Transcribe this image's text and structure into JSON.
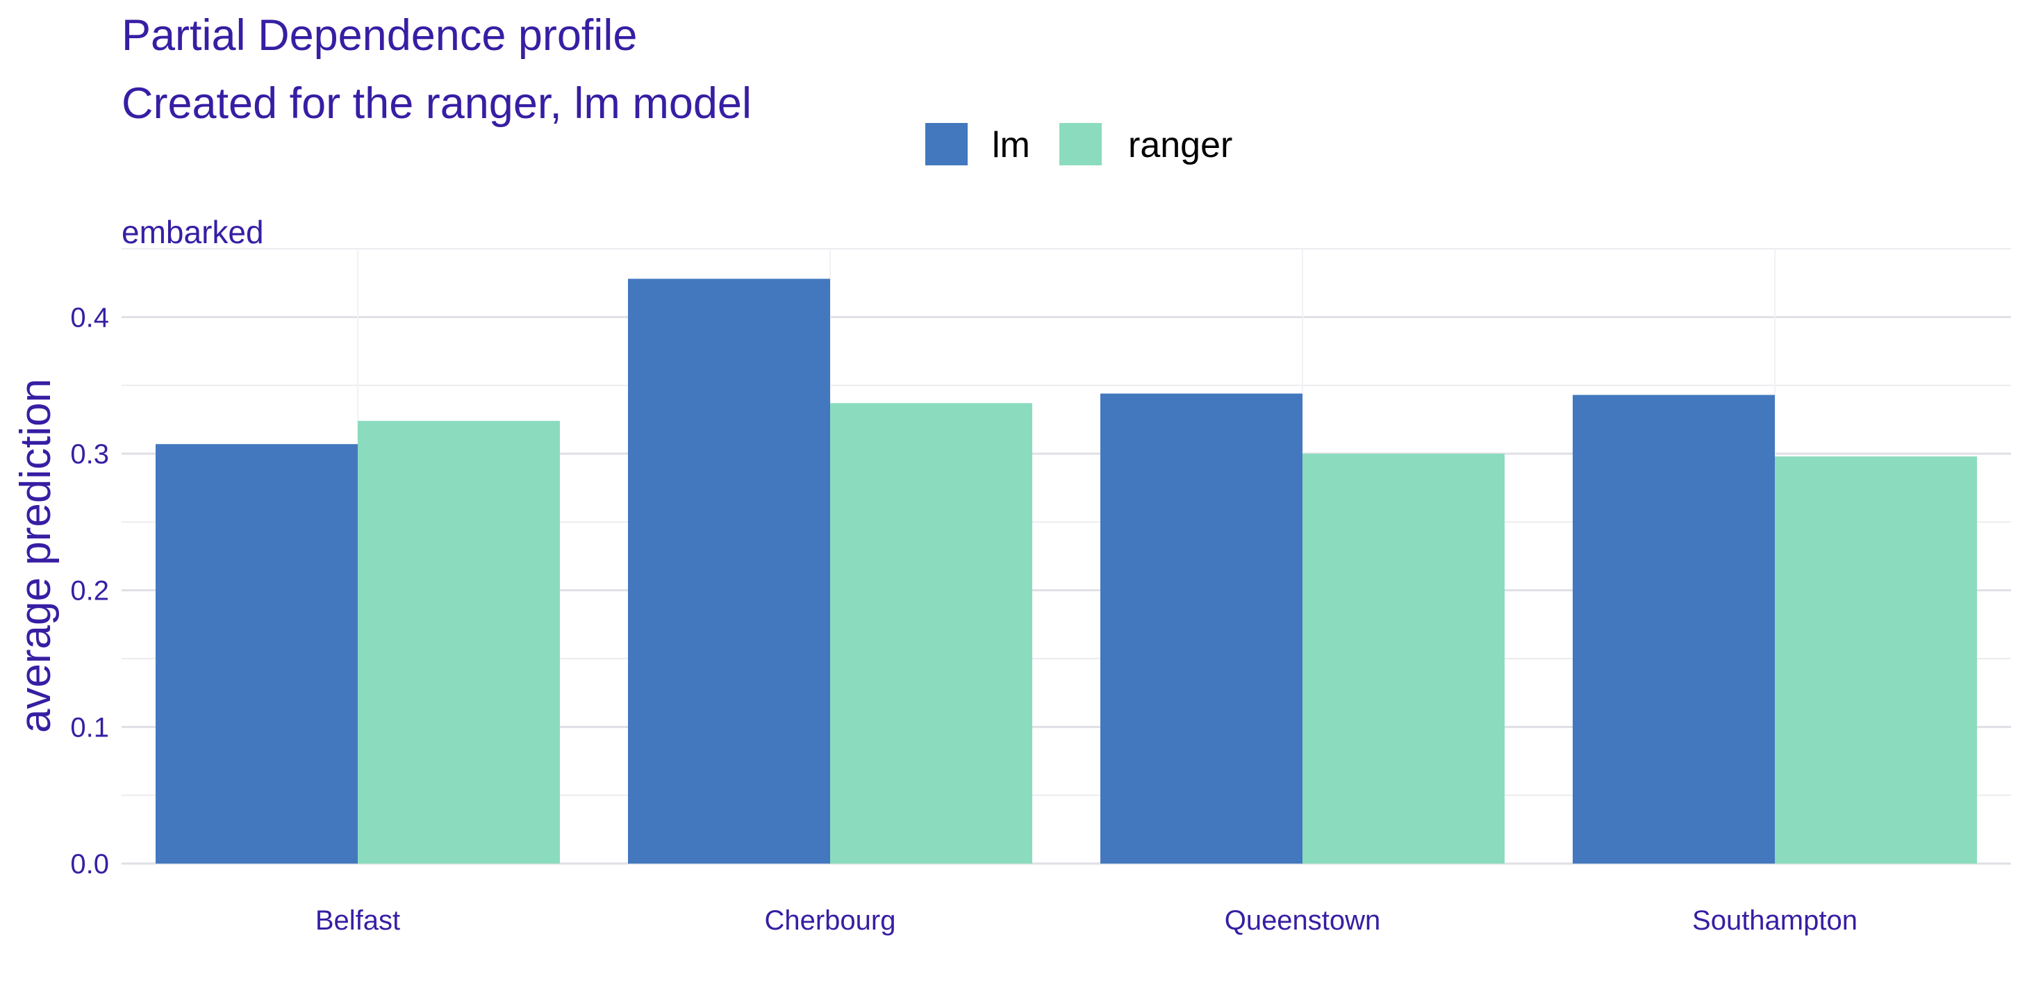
{
  "colors": {
    "title": "#371ea3",
    "text": "#371ea3",
    "legend_text": "#000000",
    "grid": "#f0f0f4",
    "lm": "#4378bf",
    "ranger": "#8bdcbe"
  },
  "chart_data": {
    "type": "bar",
    "title": "Partial Dependence profile",
    "subtitle": "Created for the ranger, lm model",
    "facet": "embarked",
    "xlabel": "",
    "ylabel": "average prediction",
    "categories": [
      "Belfast",
      "Cherbourg",
      "Queenstown",
      "Southampton"
    ],
    "series": [
      {
        "name": "lm",
        "values": [
          0.307,
          0.428,
          0.344,
          0.343
        ]
      },
      {
        "name": "ranger",
        "values": [
          0.324,
          0.337,
          0.3,
          0.298
        ]
      }
    ],
    "ylim": [
      0,
      0.45
    ],
    "yticks": [
      0.0,
      0.1,
      0.2,
      0.3,
      0.4
    ],
    "ytick_labels": [
      "0.0",
      "0.1",
      "0.2",
      "0.3",
      "0.4"
    ],
    "legend_position": "top",
    "grid": true
  }
}
